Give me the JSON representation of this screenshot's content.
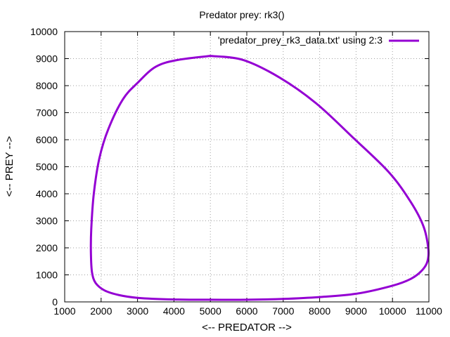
{
  "chart_data": {
    "type": "line",
    "title": "Predator prey: rk3()",
    "xlabel": "<-- PREDATOR -->",
    "ylabel": "<-- PREY -->",
    "xlim": [
      1000,
      11000
    ],
    "ylim": [
      0,
      10000
    ],
    "xticks": [
      1000,
      2000,
      3000,
      4000,
      5000,
      6000,
      7000,
      8000,
      9000,
      10000,
      11000
    ],
    "yticks": [
      0,
      1000,
      2000,
      3000,
      4000,
      5000,
      6000,
      7000,
      8000,
      9000,
      10000
    ],
    "grid": true,
    "legend_position": "top-right",
    "series": [
      {
        "name": "'predator_prey_rk3_data.txt' using 2:3",
        "color": "#9400d3",
        "x": [
          5000,
          5900,
          6900,
          7900,
          8900,
          9900,
          10500,
          10850,
          10980,
          10960,
          10800,
          10500,
          10000,
          9000,
          8000,
          7000,
          6000,
          5000,
          4000,
          3000,
          2500,
          2100,
          1850,
          1750,
          1720,
          1730,
          1800,
          1950,
          2200,
          2600,
          3000,
          3500,
          4100,
          5000
        ],
        "y": [
          9100,
          8950,
          8300,
          7350,
          6100,
          4800,
          3700,
          2800,
          2000,
          1500,
          1150,
          850,
          600,
          300,
          180,
          110,
          80,
          80,
          90,
          150,
          250,
          420,
          700,
          1100,
          1800,
          2700,
          4000,
          5300,
          6400,
          7500,
          8100,
          8700,
          8950,
          9100
        ]
      }
    ]
  }
}
